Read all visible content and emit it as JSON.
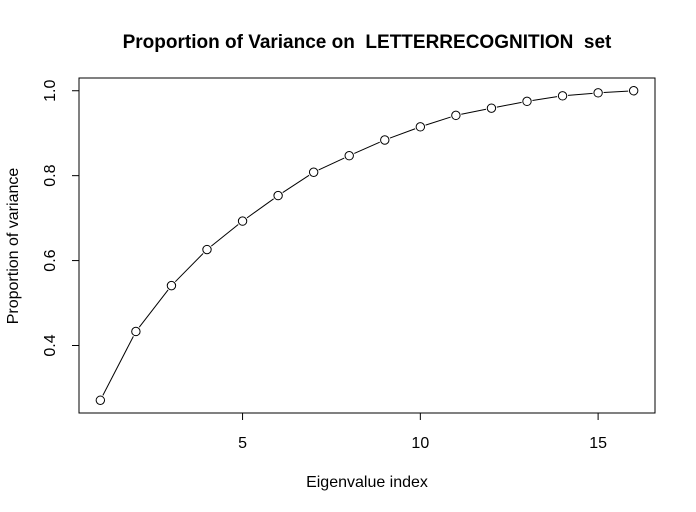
{
  "chart_data": {
    "type": "line",
    "title": "Proportion of Variance on  LETTERRECOGNITION  set",
    "xlabel": "Eigenvalue index",
    "ylabel": "Proportion of variance",
    "x": [
      1,
      2,
      3,
      4,
      5,
      6,
      7,
      8,
      9,
      10,
      11,
      12,
      13,
      14,
      15,
      16
    ],
    "series": [
      {
        "values": [
          0.271,
          0.433,
          0.541,
          0.626,
          0.693,
          0.753,
          0.808,
          0.847,
          0.884,
          0.915,
          0.942,
          0.959,
          0.975,
          0.988,
          0.995,
          1.0
        ]
      }
    ],
    "xlim": [
      0.4,
      16.6
    ],
    "ylim": [
      0.241,
      1.03
    ],
    "xticks": [
      5,
      10,
      15
    ],
    "yticks": [
      0.4,
      0.6,
      0.8,
      1.0
    ],
    "ytick_labels": [
      "0.4",
      "0.6",
      "0.8",
      "1.0"
    ],
    "grid": false,
    "marker": "open-circle",
    "line_color": "#000000"
  }
}
